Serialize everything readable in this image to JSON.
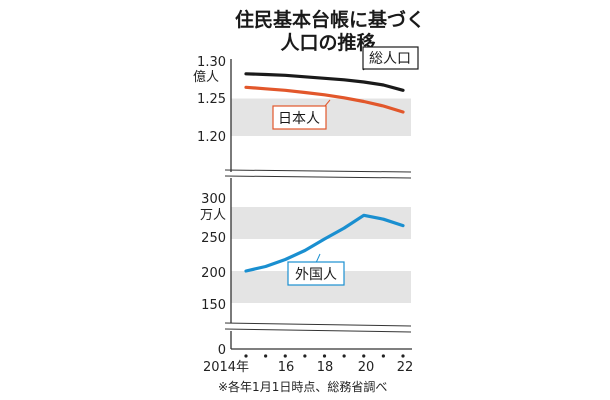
{
  "chart_data": [
    {
      "type": "line",
      "title": "住民基本台帳に基づく",
      "subtitle": "人口の推移",
      "unit": "億人",
      "ylim": [
        1.2,
        1.3
      ],
      "yticks": [
        "1.30",
        "1.25",
        "1.20"
      ],
      "x": [
        2014,
        2015,
        2016,
        2017,
        2018,
        2019,
        2020,
        2021,
        2022
      ],
      "series": [
        {
          "name": "総人口",
          "color": "#1a1a1a",
          "values": [
            1.283,
            1.282,
            1.281,
            1.279,
            1.277,
            1.275,
            1.272,
            1.268,
            1.261
          ]
        },
        {
          "name": "日本人",
          "color": "#e2572b",
          "values": [
            1.265,
            1.263,
            1.261,
            1.258,
            1.255,
            1.251,
            1.246,
            1.24,
            1.232
          ]
        }
      ]
    },
    {
      "type": "line",
      "unit": "万人",
      "ylim": [
        150,
        300
      ],
      "yticks": [
        "300",
        "250",
        "200",
        "150"
      ],
      "x": [
        2014,
        2015,
        2016,
        2017,
        2018,
        2019,
        2020,
        2021,
        2022
      ],
      "series": [
        {
          "name": "外国人",
          "color": "#1a8fd0",
          "values": [
            200,
            207,
            218,
            232,
            250,
            267,
            287,
            281,
            271
          ]
        }
      ]
    }
  ],
  "x_axis": {
    "zero_label": "0",
    "tick_labels": [
      "2014年",
      "16",
      "18",
      "20",
      "22"
    ]
  },
  "note": "※各年1月1日時点、総務省調べ"
}
